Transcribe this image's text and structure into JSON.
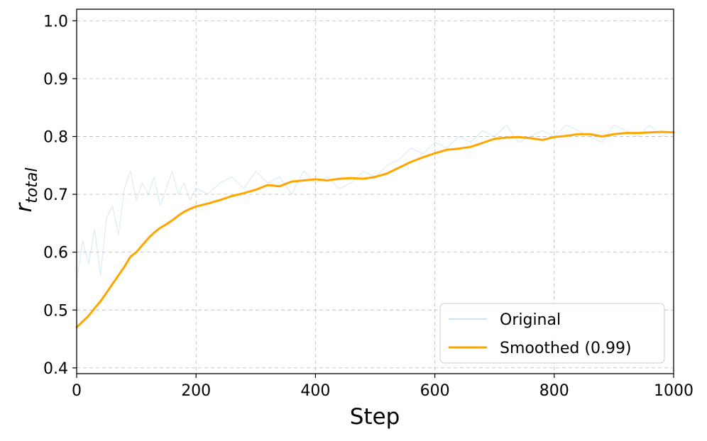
{
  "chart_data": {
    "type": "line",
    "title": "",
    "xlabel": "Step",
    "ylabel_main": "r",
    "ylabel_sub": "total",
    "xlim": [
      0,
      1000
    ],
    "ylim": [
      0.39,
      1.02
    ],
    "x_ticks": [
      0,
      200,
      400,
      600,
      800,
      1000
    ],
    "x_tick_labels": [
      "0",
      "200",
      "400",
      "600",
      "800",
      "1000"
    ],
    "y_ticks": [
      0.4,
      0.5,
      0.6,
      0.7,
      0.8,
      0.9,
      1.0
    ],
    "y_tick_labels": [
      "0.4",
      "0.5",
      "0.6",
      "0.7",
      "0.8",
      "0.9",
      "1.0"
    ],
    "grid": true,
    "legend_position": "bottom-right",
    "legend": [
      {
        "label": "Original",
        "color": "#add8e6"
      },
      {
        "label": "Smoothed (0.99)",
        "color": "#ffa500"
      }
    ],
    "series": [
      {
        "name": "Original",
        "color": "#add8e6",
        "x": [
          0,
          10,
          20,
          30,
          40,
          50,
          60,
          70,
          80,
          90,
          100,
          110,
          120,
          130,
          140,
          150,
          160,
          170,
          180,
          190,
          200,
          220,
          240,
          260,
          280,
          300,
          320,
          340,
          360,
          380,
          400,
          420,
          440,
          460,
          480,
          500,
          520,
          540,
          560,
          580,
          600,
          620,
          640,
          660,
          680,
          700,
          720,
          740,
          760,
          780,
          800,
          820,
          840,
          860,
          880,
          900,
          920,
          940,
          960,
          980,
          1000
        ],
        "values": [
          0.55,
          0.62,
          0.58,
          0.64,
          0.56,
          0.66,
          0.68,
          0.63,
          0.71,
          0.74,
          0.69,
          0.72,
          0.7,
          0.73,
          0.68,
          0.71,
          0.74,
          0.7,
          0.72,
          0.69,
          0.71,
          0.7,
          0.72,
          0.73,
          0.71,
          0.74,
          0.72,
          0.73,
          0.7,
          0.74,
          0.72,
          0.73,
          0.71,
          0.72,
          0.74,
          0.73,
          0.75,
          0.76,
          0.78,
          0.77,
          0.79,
          0.78,
          0.8,
          0.79,
          0.81,
          0.8,
          0.82,
          0.79,
          0.8,
          0.81,
          0.8,
          0.82,
          0.81,
          0.8,
          0.79,
          0.82,
          0.81,
          0.8,
          0.82,
          0.8,
          0.81
        ]
      },
      {
        "name": "Smoothed (0.99)",
        "color": "#ffa500",
        "x": [
          0,
          10,
          20,
          30,
          40,
          50,
          60,
          70,
          80,
          90,
          100,
          110,
          120,
          130,
          140,
          150,
          160,
          170,
          180,
          190,
          200,
          220,
          240,
          260,
          280,
          300,
          320,
          340,
          360,
          380,
          400,
          420,
          440,
          460,
          480,
          500,
          520,
          540,
          560,
          580,
          600,
          620,
          640,
          660,
          680,
          700,
          720,
          740,
          760,
          780,
          800,
          820,
          840,
          860,
          880,
          900,
          920,
          940,
          960,
          980,
          1000
        ],
        "values": [
          0.47,
          0.48,
          0.49,
          0.503,
          0.515,
          0.53,
          0.545,
          0.56,
          0.575,
          0.592,
          0.6,
          0.612,
          0.624,
          0.634,
          0.642,
          0.648,
          0.655,
          0.663,
          0.67,
          0.675,
          0.679,
          0.684,
          0.69,
          0.697,
          0.702,
          0.708,
          0.716,
          0.714,
          0.722,
          0.724,
          0.726,
          0.724,
          0.727,
          0.728,
          0.727,
          0.73,
          0.736,
          0.746,
          0.756,
          0.764,
          0.771,
          0.777,
          0.779,
          0.782,
          0.789,
          0.796,
          0.798,
          0.799,
          0.797,
          0.794,
          0.799,
          0.801,
          0.804,
          0.804,
          0.8,
          0.804,
          0.806,
          0.806,
          0.807,
          0.808,
          0.807
        ]
      }
    ]
  }
}
